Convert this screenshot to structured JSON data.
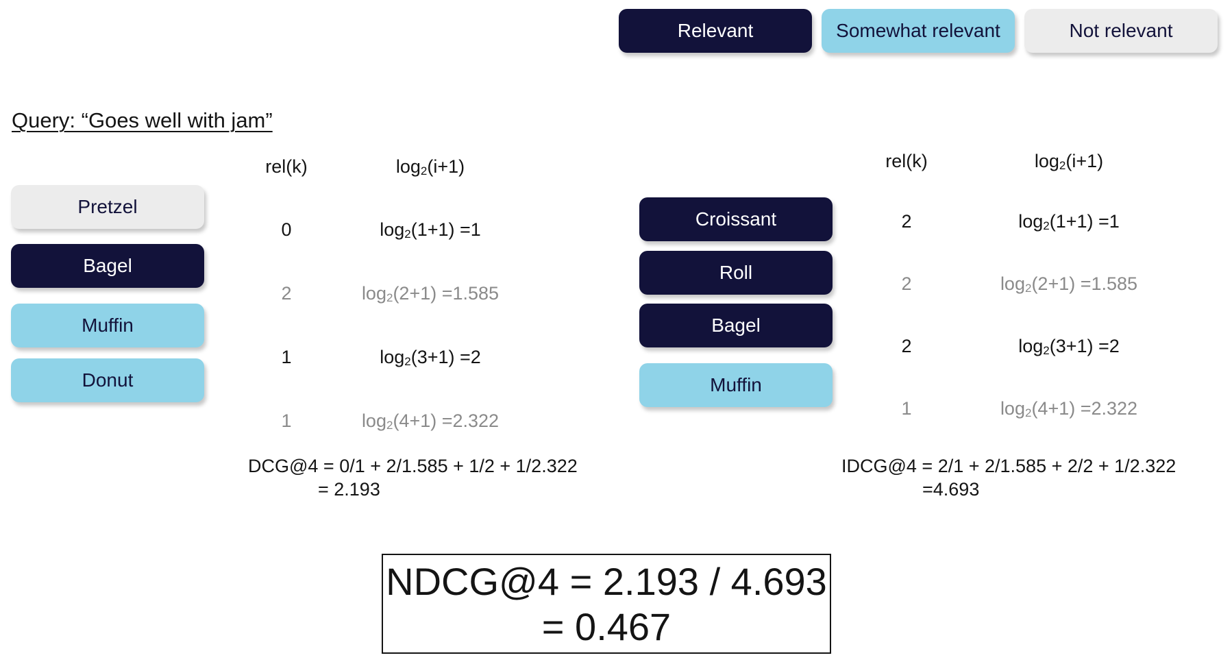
{
  "legend": {
    "relevant": "Relevant",
    "somewhat": "Somewhat relevant",
    "not_relevant": "Not relevant"
  },
  "query": "Query: “Goes well with jam”",
  "left": {
    "col_rel": "rel(k)",
    "col_log_base": "log",
    "col_log_sub": "2",
    "col_log_arg": "(i+1)",
    "items": [
      {
        "label": "Pretzel",
        "relevance": "not relevant",
        "rel": "0",
        "log_arg": "(1+1) =1"
      },
      {
        "label": "Bagel",
        "relevance": "relevant",
        "rel": "2",
        "log_arg": "(2+1) =1.585"
      },
      {
        "label": "Muffin",
        "relevance": "somewhat relevant",
        "rel": "1",
        "log_arg": "(3+1) =2"
      },
      {
        "label": "Donut",
        "relevance": "somewhat relevant",
        "rel": "1",
        "log_arg": "(4+1) =2.322"
      }
    ],
    "formula_line1": "DCG@4 = 0/1 + 2/1.585 + 1/2 + 1/2.322",
    "formula_line2": "= 2.193"
  },
  "right": {
    "col_rel": "rel(k)",
    "col_log_base": "log",
    "col_log_sub": "2",
    "col_log_arg": "(i+1)",
    "items": [
      {
        "label": "Croissant",
        "relevance": "relevant",
        "rel": "2",
        "log_arg": "(1+1) =1"
      },
      {
        "label": "Roll",
        "relevance": "relevant",
        "rel": "2",
        "log_arg": "(2+1) =1.585"
      },
      {
        "label": "Bagel",
        "relevance": "relevant",
        "rel": "2",
        "log_arg": "(3+1) =2"
      },
      {
        "label": "Muffin",
        "relevance": "somewhat relevant",
        "rel": "1",
        "log_arg": "(4+1) =2.322"
      }
    ],
    "formula_line1": "IDCG@4 = 2/1 + 2/1.585 + 2/2 + 1/2.322",
    "formula_line2": "=4.693"
  },
  "ndcg": {
    "line1": "NDCG@4 = 2.193 / 4.693",
    "line2": "= 0.467"
  },
  "colors": {
    "relevant": "#12123a",
    "somewhat_relevant": "#8fd3e8",
    "not_relevant": "#ececec",
    "emphasis_text": "#141414",
    "muted_text": "#8a8a8a"
  }
}
